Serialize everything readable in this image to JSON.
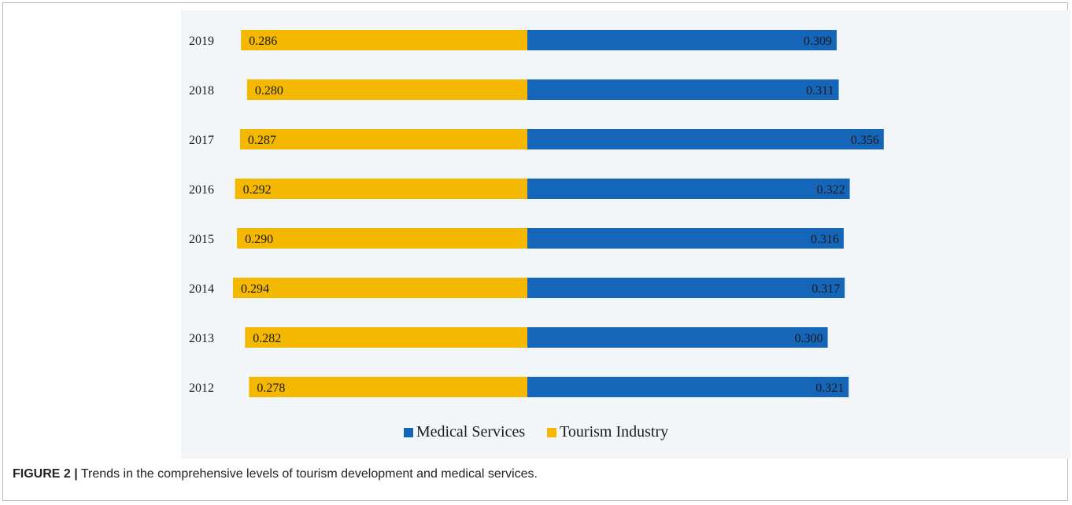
{
  "caption": {
    "label": "FIGURE 2 |",
    "text": " Trends in the comprehensive levels of tourism development and medical services."
  },
  "colors": {
    "medical": "#1565b8",
    "tourism": "#f5b800"
  },
  "chart_data": {
    "type": "bar",
    "orientation": "horizontal-diverging",
    "categories": [
      "2019",
      "2018",
      "2017",
      "2016",
      "2015",
      "2014",
      "2013",
      "2012"
    ],
    "series": [
      {
        "name": "Tourism Industry",
        "side": "left",
        "values": [
          0.286,
          0.28,
          0.287,
          0.292,
          0.29,
          0.294,
          0.282,
          0.278
        ]
      },
      {
        "name": "Medical Services",
        "side": "right",
        "values": [
          0.309,
          0.311,
          0.356,
          0.322,
          0.316,
          0.317,
          0.3,
          0.321
        ]
      }
    ],
    "data_labels": {
      "tourism": [
        "0.286",
        "0.280",
        "0.287",
        "0.292",
        "0.290",
        "0.294",
        "0.282",
        "0.278"
      ],
      "medical": [
        "0.309",
        "0.311",
        "0.356",
        "0.322",
        "0.316",
        "0.317",
        "0.300",
        "0.321"
      ]
    },
    "legend": {
      "placement": "bottom",
      "entries": [
        "Medical Services",
        "Tourism Industry"
      ]
    },
    "grid": false
  }
}
